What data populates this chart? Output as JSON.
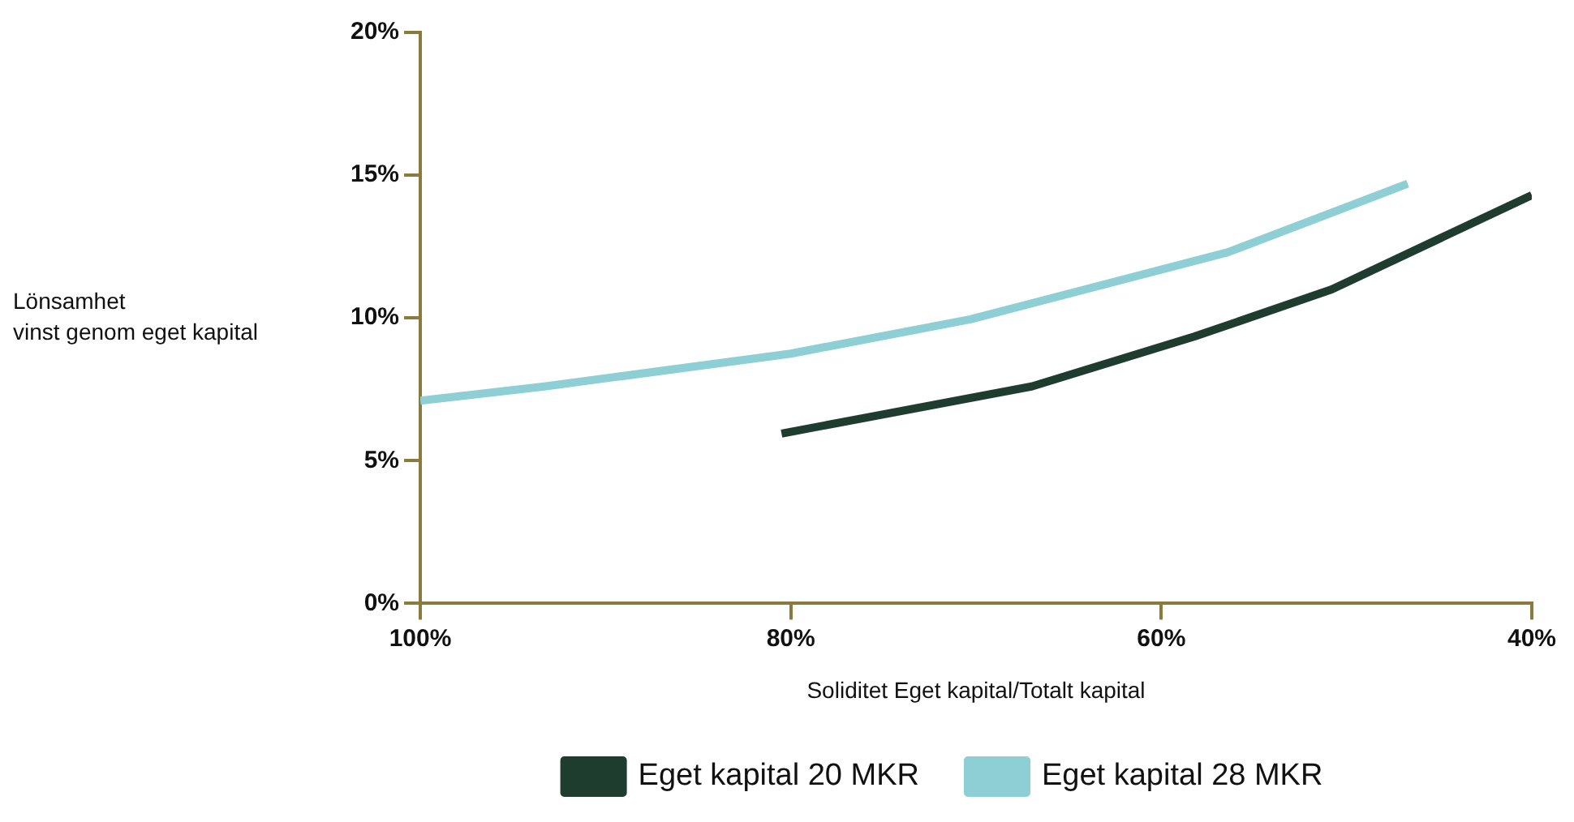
{
  "chart_data": {
    "type": "line",
    "xlabel": "Soliditet Eget kapital/Totalt kapital",
    "ylabel": "Lönsamhet\nvinst genom eget kapital",
    "xlim": [
      100,
      40
    ],
    "xticks": [
      {
        "value": 100,
        "label": "100%"
      },
      {
        "value": 80,
        "label": "80%"
      },
      {
        "value": 60,
        "label": "60%"
      },
      {
        "value": 40,
        "label": "40%"
      }
    ],
    "ylim": [
      0,
      20
    ],
    "yticks": [
      {
        "value": 0,
        "label": "0%"
      },
      {
        "value": 5,
        "label": "5%"
      },
      {
        "value": 10,
        "label": "10%"
      },
      {
        "value": 15,
        "label": "15%"
      },
      {
        "value": 20,
        "label": "20%"
      }
    ],
    "grid": false,
    "legend": "bottom",
    "marker": "none",
    "line_style": "solid",
    "series": [
      {
        "name": "Eget kapital 20 MKR",
        "color": "#1f3d2e",
        "x": [
          80.5,
          67,
          58.2,
          50.8,
          40
        ],
        "values": [
          5.95,
          7.6,
          9.35,
          11.0,
          14.3
        ]
      },
      {
        "name": "Eget kapital 28 MKR",
        "color": "#8ecfd6",
        "x": [
          100,
          93.3,
          80,
          70.3,
          56.4,
          46.7
        ],
        "values": [
          7.1,
          7.6,
          8.75,
          9.95,
          12.3,
          14.7
        ]
      }
    ]
  }
}
